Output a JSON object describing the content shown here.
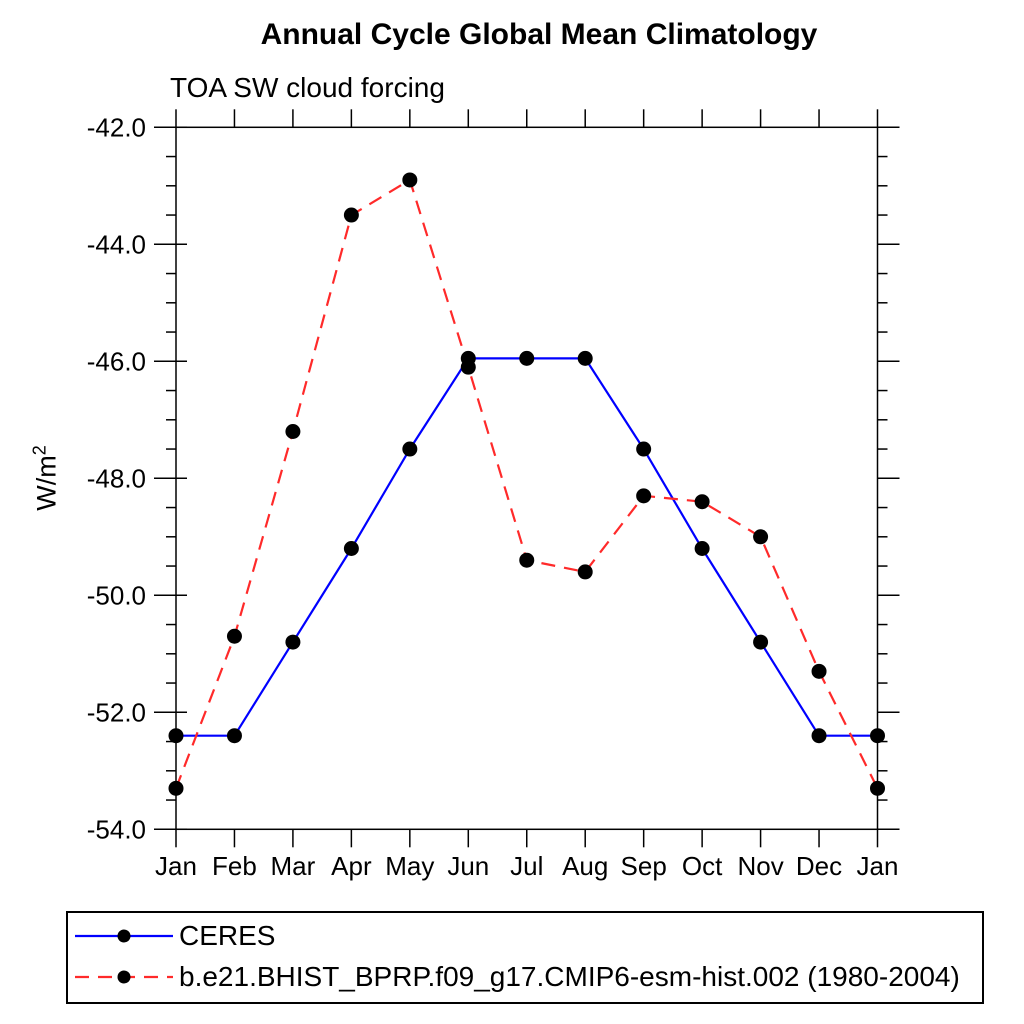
{
  "header": {
    "title": "Annual Cycle Global Mean Climatology",
    "subtitle": "TOA SW cloud forcing"
  },
  "chart_data": {
    "type": "line",
    "title": "Annual Cycle Global Mean Climatology",
    "subtitle": "TOA SW cloud forcing",
    "ylabel_base": "W/m",
    "ylabel_exponent": "2",
    "x_categories": [
      "Jan",
      "Feb",
      "Mar",
      "Apr",
      "May",
      "Jun",
      "Jul",
      "Aug",
      "Sep",
      "Oct",
      "Nov",
      "Dec",
      "Jan"
    ],
    "ylim": [
      -54.0,
      -42.0
    ],
    "ytick_values": [
      -42.0,
      -44.0,
      -46.0,
      -48.0,
      -50.0,
      -52.0,
      -54.0
    ],
    "ytick_labels": [
      "-42.0",
      "-44.0",
      "-46.0",
      "-48.0",
      "-50.0",
      "-52.0",
      "-54.0"
    ],
    "ytick_minor_step": 0.5,
    "grid": false,
    "legend_position": "bottom-box",
    "series": [
      {
        "name": "CERES",
        "color": "#0000ff",
        "line_style": "solid",
        "marker": "filled-circle",
        "marker_color": "#000000",
        "values": [
          -52.4,
          -52.4,
          -50.8,
          -49.2,
          -47.5,
          -45.95,
          -45.95,
          -45.95,
          -47.5,
          -49.2,
          -50.8,
          -52.4,
          -52.4
        ]
      },
      {
        "name": "b.e21.BHIST_BPRP.f09_g17.CMIP6-esm-hist.002 (1980-2004)",
        "color": "#ff2a2a",
        "line_style": "dashed",
        "marker": "filled-circle",
        "marker_color": "#000000",
        "values": [
          -53.3,
          -50.7,
          -47.2,
          -43.5,
          -42.9,
          -46.1,
          -49.4,
          -49.6,
          -48.3,
          -48.4,
          -49.0,
          -51.3,
          -53.3
        ]
      }
    ],
    "axis_color": "#000000",
    "text_color": "#000000",
    "background_color": "#ffffff"
  }
}
